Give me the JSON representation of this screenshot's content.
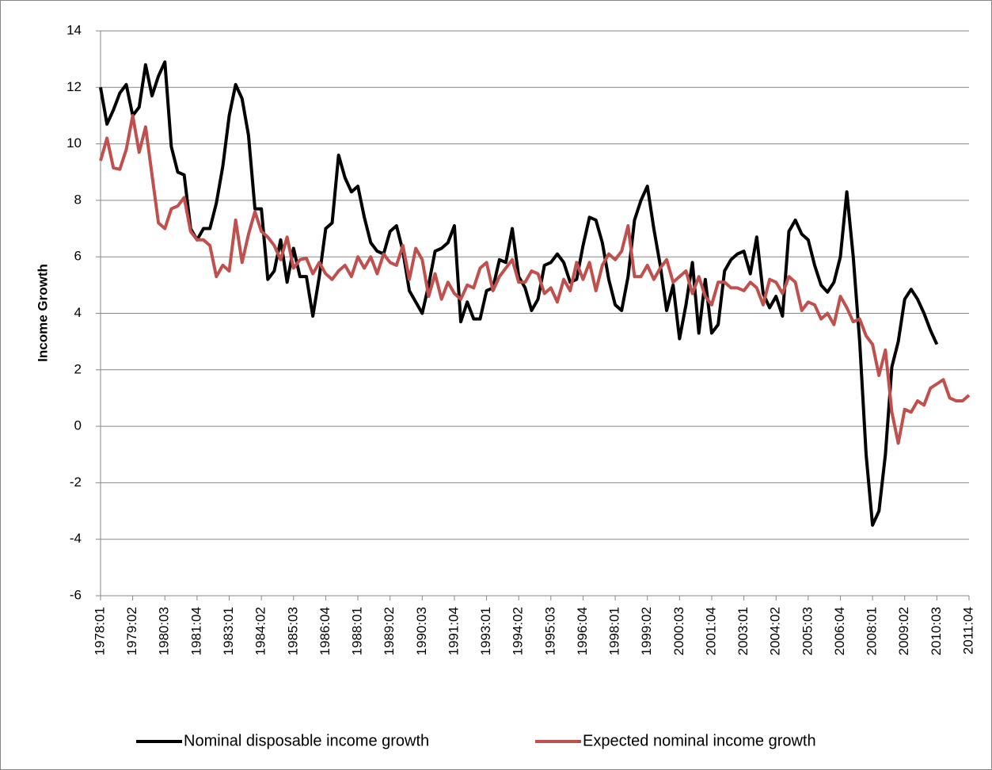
{
  "chart_data": {
    "type": "line",
    "y_label": "Income Growth",
    "categories": [
      "1978:01",
      null,
      null,
      null,
      null,
      "1979:02",
      null,
      null,
      null,
      null,
      "1980:03",
      null,
      null,
      null,
      null,
      "1981:04",
      null,
      null,
      null,
      null,
      "1983:01",
      null,
      null,
      null,
      null,
      "1984:02",
      null,
      null,
      null,
      null,
      "1985:03",
      null,
      null,
      null,
      null,
      "1986:04",
      null,
      null,
      null,
      null,
      "1988:01",
      null,
      null,
      null,
      null,
      "1989:02",
      null,
      null,
      null,
      null,
      "1990:03",
      null,
      null,
      null,
      null,
      "1991:04",
      null,
      null,
      null,
      null,
      "1993:01",
      null,
      null,
      null,
      null,
      "1994:02",
      null,
      null,
      null,
      null,
      "1995:03",
      null,
      null,
      null,
      null,
      "1996:04",
      null,
      null,
      null,
      null,
      "1998:01",
      null,
      null,
      null,
      null,
      "1999:02",
      null,
      null,
      null,
      null,
      "2000:03",
      null,
      null,
      null,
      null,
      "2001:04",
      null,
      null,
      null,
      null,
      "2003:01",
      null,
      null,
      null,
      null,
      "2004:02",
      null,
      null,
      null,
      null,
      "2005:03",
      null,
      null,
      null,
      null,
      "2006:04",
      null,
      null,
      null,
      null,
      "2008:01",
      null,
      null,
      null,
      null,
      "2009:02",
      null,
      null,
      null,
      null,
      "2010:03",
      null,
      null,
      null,
      null,
      "2011:04"
    ],
    "series": [
      {
        "name": "Nominal disposable income growth",
        "color": "#000000",
        "values": [
          12.0,
          10.7,
          11.2,
          11.8,
          12.1,
          11.0,
          11.3,
          12.8,
          11.7,
          12.4,
          12.9,
          9.9,
          9.0,
          8.9,
          7.0,
          6.6,
          7.0,
          7.0,
          7.9,
          9.2,
          11.0,
          12.1,
          11.6,
          10.3,
          7.7,
          7.7,
          5.2,
          5.5,
          6.6,
          5.1,
          6.3,
          5.3,
          5.3,
          3.9,
          5.3,
          7.0,
          7.2,
          9.6,
          8.8,
          8.3,
          8.5,
          7.4,
          6.5,
          6.2,
          6.1,
          6.9,
          7.1,
          6.2,
          4.8,
          4.4,
          4.0,
          5.0,
          6.2,
          6.3,
          6.5,
          7.1,
          3.7,
          4.4,
          3.8,
          3.8,
          4.8,
          4.9,
          5.9,
          5.8,
          7.0,
          5.3,
          4.9,
          4.1,
          4.5,
          5.7,
          5.8,
          6.1,
          5.8,
          5.1,
          5.2,
          6.4,
          7.4,
          7.3,
          6.5,
          5.2,
          4.3,
          4.1,
          5.3,
          7.3,
          8.0,
          8.5,
          7.0,
          5.7,
          4.1,
          5.0,
          3.1,
          4.3,
          5.8,
          3.3,
          5.2,
          3.3,
          3.6,
          5.5,
          5.9,
          6.1,
          6.2,
          5.4,
          6.7,
          4.7,
          4.2,
          4.6,
          3.9,
          6.9,
          7.3,
          6.8,
          6.6,
          5.7,
          5.0,
          4.75,
          5.1,
          6.0,
          8.3,
          6.0,
          3.0,
          -1.0,
          -3.5,
          -3.0,
          -1.0,
          2.1,
          3.0,
          4.5,
          4.85,
          4.5,
          4.0,
          3.4,
          2.9,
          null,
          null,
          null,
          null,
          null
        ]
      },
      {
        "name": "Expected nominal income growth",
        "color": "#c0504d",
        "values": [
          9.4,
          10.2,
          9.15,
          9.1,
          9.8,
          11.0,
          9.7,
          10.6,
          8.9,
          7.2,
          7.0,
          7.7,
          7.8,
          8.1,
          6.9,
          6.6,
          6.6,
          6.4,
          5.3,
          5.7,
          5.5,
          7.3,
          5.8,
          6.8,
          7.6,
          6.9,
          6.7,
          6.4,
          5.9,
          6.7,
          5.6,
          5.9,
          5.95,
          5.4,
          5.8,
          5.4,
          5.2,
          5.5,
          5.7,
          5.3,
          6.0,
          5.6,
          6.0,
          5.4,
          6.1,
          5.8,
          5.7,
          6.4,
          5.2,
          6.3,
          5.9,
          4.6,
          5.4,
          4.5,
          5.1,
          4.7,
          4.5,
          5.0,
          4.9,
          5.6,
          5.8,
          4.8,
          5.3,
          5.6,
          5.9,
          5.1,
          5.1,
          5.5,
          5.4,
          4.7,
          4.9,
          4.4,
          5.2,
          4.8,
          5.8,
          5.2,
          5.8,
          4.8,
          5.7,
          6.1,
          5.9,
          6.2,
          7.1,
          5.3,
          5.3,
          5.7,
          5.2,
          5.6,
          5.9,
          5.1,
          5.3,
          5.5,
          4.7,
          5.3,
          4.6,
          4.3,
          5.1,
          5.1,
          4.9,
          4.9,
          4.8,
          5.1,
          4.9,
          4.3,
          5.2,
          5.1,
          4.7,
          5.3,
          5.1,
          4.1,
          4.4,
          4.3,
          3.8,
          4.0,
          3.6,
          4.6,
          4.2,
          3.7,
          3.8,
          3.2,
          2.9,
          1.8,
          2.7,
          0.5,
          -0.6,
          0.6,
          0.5,
          0.9,
          0.75,
          1.35,
          1.5,
          1.65,
          1.0,
          0.9,
          0.9,
          1.1
        ]
      }
    ],
    "ylim": [
      -6,
      14
    ],
    "yticks": [
      -6,
      -4,
      -2,
      0,
      2,
      4,
      6,
      8,
      10,
      12,
      14
    ],
    "grid": true,
    "legend": "bottom"
  }
}
